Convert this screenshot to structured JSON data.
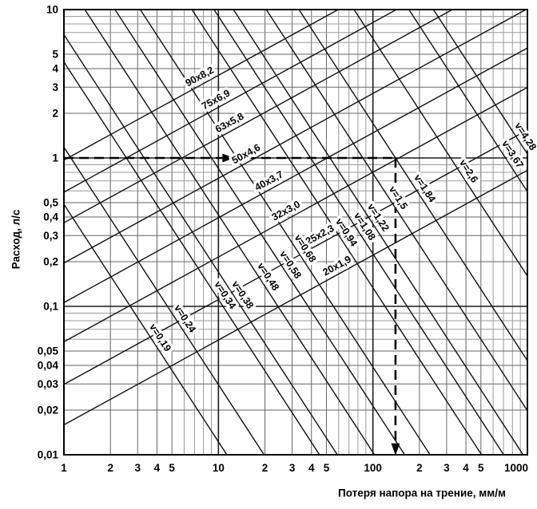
{
  "chart_data": {
    "type": "line",
    "subtype": "log-log hydraulic nomogram",
    "title": "",
    "xlabel": "Потеря напора на трение, мм/м",
    "ylabel": "Расход, л/с",
    "xscale": "log",
    "yscale": "log",
    "xlim": [
      1,
      1000
    ],
    "ylim": [
      0.01,
      10
    ],
    "grid": "full log minor grid",
    "legend": "none",
    "colors": {
      "line": "#101010",
      "grid_minor_light": "#9b9b9b",
      "grid_minor_dark": "#666666",
      "grid_decade": "#1c1c1c",
      "border": "#000000",
      "example_trace": "#000000",
      "background": "#ffffff"
    },
    "x_axis": {
      "tick_values": [
        1,
        2,
        3,
        4,
        5,
        10,
        20,
        30,
        40,
        50,
        100,
        200,
        300,
        400,
        500,
        1000
      ],
      "tick_labels": [
        "1",
        "2",
        "3",
        "4",
        "5",
        "10",
        "2",
        "3",
        "4",
        "5",
        "100",
        "2",
        "3",
        "4",
        "5",
        "1000"
      ]
    },
    "y_axis": {
      "tick_values": [
        10,
        5,
        4,
        3,
        2,
        1,
        0.5,
        0.4,
        0.3,
        0.2,
        0.1,
        0.05,
        0.04,
        0.03,
        0.02,
        0.01
      ],
      "tick_labels": [
        "10",
        "5",
        "4",
        "3",
        "2",
        "1",
        "0,5",
        "0,4",
        "0,3",
        "0,2",
        "0,1",
        "0,05",
        "0,04",
        "0,03",
        "0,02",
        "0,01"
      ]
    },
    "pipe_lines": [
      {
        "label": "90x8,2",
        "points": [
          [
            1,
            0.967
          ],
          [
            59.6,
            10
          ]
        ],
        "label_at_i": 8
      },
      {
        "label": "75x6,9",
        "points": [
          [
            1,
            0.588
          ],
          [
            142,
            10
          ]
        ],
        "label_at_i": 10.2
      },
      {
        "label": "63x5,8",
        "points": [
          [
            1,
            0.366
          ],
          [
            327,
            10
          ]
        ],
        "label_at_i": 12.5
      },
      {
        "label": "50x4,6",
        "points": [
          [
            1,
            0.196
          ],
          [
            978,
            10
          ]
        ],
        "label_at_i": 16
      },
      {
        "label": "40x3,7",
        "points": [
          [
            1,
            0.106
          ],
          [
            1000,
            5.51
          ]
        ],
        "label_at_i": 22.5
      },
      {
        "label": "32x3,0",
        "points": [
          [
            1,
            0.0577
          ],
          [
            1000,
            2.99
          ]
        ],
        "label_at_i": 29
      },
      {
        "label": "25x2,3",
        "points": [
          [
            1,
            0.0298
          ],
          [
            1000,
            1.544
          ]
        ],
        "label_at_i": 48
      },
      {
        "label": "20x1,9",
        "points": [
          [
            1,
            0.0159
          ],
          [
            1000,
            0.826
          ]
        ],
        "label_at_i": 62
      }
    ],
    "velocity_lines": [
      {
        "label": "v=0,19",
        "points": [
          [
            1,
            0.487
          ],
          [
            11.34,
            0.01
          ]
        ],
        "label_at_i": 3.8
      },
      {
        "label": "v=0,24",
        "points": [
          [
            1,
            1.181
          ],
          [
            19.74,
            0.01
          ]
        ],
        "label_at_i": 5.5
      },
      {
        "label": "v=0,34",
        "points": [
          [
            1,
            4.437
          ],
          [
            45.1,
            0.01
          ]
        ],
        "label_at_i": 10
      },
      {
        "label": "v=0,38",
        "points": [
          [
            1,
            6.77
          ],
          [
            58.8,
            0.01
          ]
        ],
        "label_at_i": 13
      },
      {
        "label": "v=0,48",
        "points": [
          [
            1.366,
            10
          ],
          [
            102.4,
            0.01
          ]
        ],
        "label_at_i": 19
      },
      {
        "label": "v=0,58",
        "points": [
          [
            2.14,
            10
          ],
          [
            160.5,
            0.01
          ]
        ],
        "label_at_i": 26.5
      },
      {
        "label": "v=0,68",
        "points": [
          [
            3.12,
            10
          ],
          [
            234.2,
            0.01
          ]
        ],
        "label_at_i": 33
      },
      {
        "label": "v=0,94",
        "points": [
          [
            6.74,
            10
          ],
          [
            505,
            0.01
          ]
        ],
        "label_at_i": 61
      },
      {
        "label": "v=1,08",
        "points": [
          [
            9.37,
            10
          ],
          [
            702,
            0.01
          ]
        ],
        "label_at_i": 80
      },
      {
        "label": "v=1,22",
        "points": [
          [
            12.51,
            10
          ],
          [
            938,
            0.01
          ]
        ],
        "label_at_i": 98
      },
      {
        "label": "v=1,5",
        "points": [
          [
            20.4,
            10
          ],
          [
            1000,
            0.0198
          ]
        ],
        "label_at_i": 132
      },
      {
        "label": "v=1,84",
        "points": [
          [
            33.2,
            10
          ],
          [
            1000,
            0.043
          ]
        ],
        "label_at_i": 196
      },
      {
        "label": "v=2,6",
        "points": [
          [
            75.5,
            10
          ],
          [
            1000,
            0.16
          ]
        ],
        "label_at_i": 377
      },
      {
        "label": "v=3,67",
        "points": [
          [
            171,
            10
          ],
          [
            1000,
            0.593
          ]
        ],
        "label_at_i": 726
      },
      {
        "label": "v=4,28",
        "points": [
          [
            246.5,
            10
          ],
          [
            1000,
            1.064
          ]
        ],
        "label_at_i": 880
      }
    ],
    "example_trace": {
      "flow_l_s": 1,
      "head_loss_mm_m": 140,
      "horizontal": {
        "at_flow": 1,
        "from_i": 1,
        "to_i": 140
      },
      "vertical": {
        "at_i": 140,
        "from_flow": 1,
        "to_flow": 0.0125
      },
      "arrows": [
        {
          "at": [
            11,
            1
          ],
          "dir": "right"
        },
        {
          "at": [
            140,
            0.0115
          ],
          "dir": "down"
        }
      ]
    }
  }
}
